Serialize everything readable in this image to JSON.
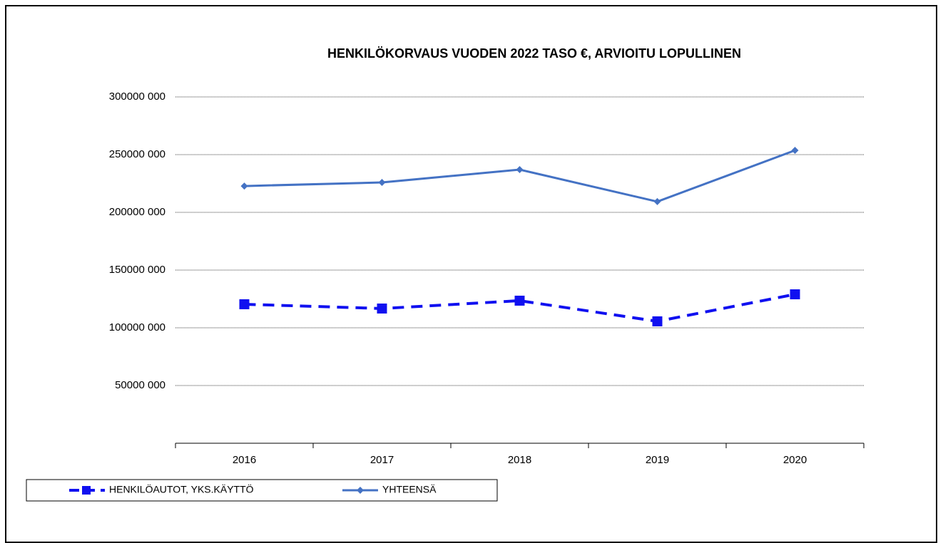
{
  "chart_data": {
    "type": "line",
    "title": "HENKILÖKORVAUS VUODEN 2022 TASO €, ARVIOITU LOPULLINEN",
    "categories": [
      "2016",
      "2017",
      "2018",
      "2019",
      "2020"
    ],
    "series": [
      {
        "name": "HENKILÖAUTOT, YKS.KÄYTTÖ",
        "color": "#1010f0",
        "dash": true,
        "marker": "square",
        "values": [
          120400000,
          116700000,
          123500000,
          105600000,
          129000000
        ]
      },
      {
        "name": "YHTEENSÄ",
        "color": "#4472c4",
        "dash": false,
        "marker": "diamond",
        "values": [
          222800000,
          225900000,
          237000000,
          209300000,
          253700000
        ]
      }
    ],
    "ylim": [
      0,
      300000000
    ],
    "yticks": [
      {
        "value": 50000000,
        "label": "50000 000"
      },
      {
        "value": 100000000,
        "label": "100000 000"
      },
      {
        "value": 150000000,
        "label": "150000 000"
      },
      {
        "value": 200000000,
        "label": "200000 000"
      },
      {
        "value": 250000000,
        "label": "250000 000"
      },
      {
        "value": 300000000,
        "label": "300000 000"
      }
    ],
    "grid": true,
    "legend": "bottom"
  }
}
